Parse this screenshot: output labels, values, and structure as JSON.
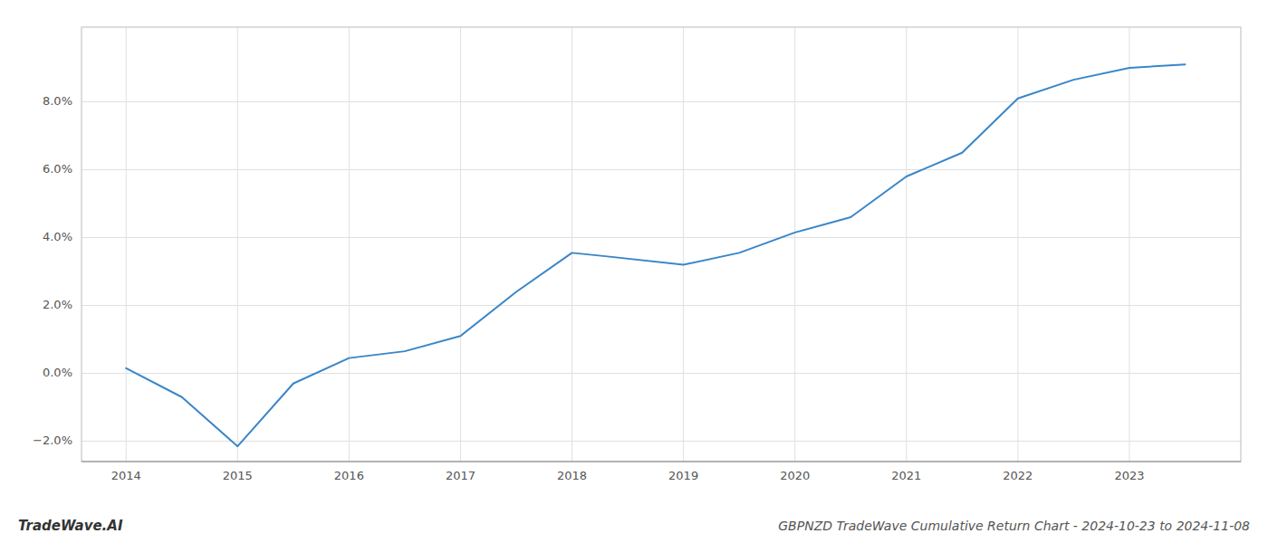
{
  "chart_data": {
    "type": "line",
    "title": "GBPNZD TradeWave Cumulative Return Chart - 2024-10-23 to 2024-11-08",
    "annotations": [
      "TradeWave.AI"
    ],
    "x": [
      2014.0,
      2014.5,
      2015.0,
      2015.5,
      2016.0,
      2016.5,
      2017.0,
      2017.5,
      2018.0,
      2018.3,
      2019.0,
      2019.5,
      2020.0,
      2020.5,
      2021.0,
      2021.5,
      2022.0,
      2022.5,
      2023.0,
      2023.5
    ],
    "values": [
      0.15,
      -0.7,
      -2.15,
      -0.3,
      0.45,
      0.65,
      1.1,
      2.4,
      3.55,
      3.45,
      3.2,
      3.55,
      4.15,
      4.6,
      5.8,
      6.5,
      8.1,
      8.65,
      9.0,
      9.1
    ],
    "color": "#3a86c8",
    "xlim": [
      2013.6,
      2024.0
    ],
    "ylim": [
      -2.6,
      10.2
    ],
    "xticks": [
      2014,
      2015,
      2016,
      2017,
      2018,
      2019,
      2020,
      2021,
      2022,
      2023
    ],
    "yticks": [
      {
        "value": -2,
        "label": "−2.0%"
      },
      {
        "value": 0,
        "label": "0.0%"
      },
      {
        "value": 2,
        "label": "2.0%"
      },
      {
        "value": 4,
        "label": "4.0%"
      },
      {
        "value": 6,
        "label": "6.0%"
      },
      {
        "value": 8,
        "label": "8.0%"
      }
    ],
    "grid": true
  }
}
